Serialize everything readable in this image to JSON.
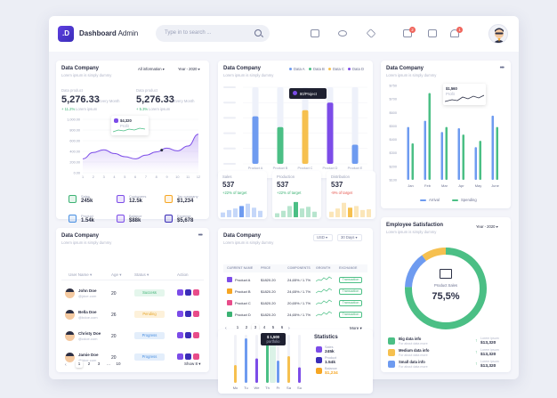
{
  "header": {
    "logo": ".D",
    "brand_bold": "Dashboard",
    "brand_light": "Admin",
    "search_placeholder": "Type in to search ...",
    "mail_badge": "2",
    "bell_badge": "1"
  },
  "card1": {
    "title": "Data Company",
    "subtitle": "Lorem ipsum is simply dummy",
    "filter": "All information",
    "year": "Year - 2020",
    "stat1": {
      "label": "Data product",
      "value": "5,276.33",
      "sub": "Every Month",
      "change": "+ 11.2%",
      "change_label": "Lorem ipsum"
    },
    "stat2": {
      "label": "Data product",
      "value": "5,276.33",
      "sub": "Every Month",
      "change": "+ 5.3%",
      "change_label": "Lorem ipsum"
    },
    "tooltip": {
      "value": "$4,320",
      "label": "Profit"
    },
    "yticks": [
      "1,000.00",
      "800.00",
      "600.00",
      "400.00",
      "200.00",
      "0.00"
    ],
    "xticks": [
      "1",
      "2",
      "3",
      "4",
      "5",
      "6",
      "7",
      "8",
      "9",
      "10",
      "11",
      "12"
    ],
    "chart_data": {
      "type": "area",
      "x": [
        1,
        2,
        3,
        4,
        5,
        6,
        7,
        8,
        9,
        10,
        11,
        12
      ],
      "values": [
        260,
        380,
        430,
        360,
        300,
        260,
        330,
        390,
        460,
        410,
        500,
        720
      ],
      "ylim": [
        0,
        1000
      ]
    },
    "kpis": [
      {
        "label": "Sales",
        "value": "245k"
      },
      {
        "label": "Customers",
        "value": "12.5k"
      },
      {
        "label": "Tax company",
        "value": "$1,234"
      },
      {
        "label": "Product",
        "value": "1.54k"
      },
      {
        "label": "Balance",
        "value": "$88k"
      },
      {
        "label": "Expense",
        "value": "$5,678"
      }
    ]
  },
  "card2": {
    "title": "Data Company",
    "subtitle": "Lorem ipsum is simply dummy",
    "legend": [
      "Data A",
      "Data B",
      "Data C",
      "Data D"
    ],
    "tooltip": "80/Project",
    "chart_data": {
      "type": "bar",
      "categories": [
        "Product A",
        "Product B",
        "Product C",
        "Product D",
        "Product E"
      ],
      "series": [
        {
          "name": "Data A",
          "values": [
            62,
            50,
            45,
            60,
            25
          ]
        },
        {
          "name": "Data B",
          "values": [
            58,
            48,
            40,
            52,
            20
          ]
        },
        {
          "name": "Data C",
          "values": [
            50,
            60,
            70,
            60,
            18
          ]
        },
        {
          "name": "Data D",
          "values": [
            48,
            55,
            62,
            80,
            15
          ]
        }
      ],
      "ylim": [
        0,
        100
      ]
    },
    "colors": [
      "#6e9bf0",
      "#4bbf85",
      "#f6c04f",
      "#7c4ce8"
    ]
  },
  "mini": [
    {
      "title": "Sales",
      "value": "537",
      "change": "+22% of target",
      "color": "#6e9bf0",
      "values": [
        30,
        45,
        55,
        70,
        85,
        60,
        40
      ],
      "positive": true
    },
    {
      "title": "Production",
      "value": "537",
      "change": "+22% of target",
      "color": "#4bbf85",
      "values": [
        25,
        40,
        70,
        95,
        55,
        65,
        35
      ],
      "positive": true
    },
    {
      "title": "Distribution",
      "value": "537",
      "change": "-9% of target",
      "color": "#f6c04f",
      "values": [
        35,
        55,
        90,
        60,
        70,
        45,
        50
      ],
      "positive": false
    }
  ],
  "card3": {
    "title": "Data Company",
    "subtitle": "Lorem ipsum is simply dummy",
    "tooltip_value": "$1,560",
    "tooltip_label": "Profit",
    "yticks": [
      "$750",
      "$700",
      "$600",
      "$500",
      "$400",
      "$300",
      "$200",
      "$100"
    ],
    "chart_data": {
      "type": "bar",
      "categories": [
        "Jan",
        "Feb",
        "Mar",
        "Apr",
        "May",
        "June"
      ],
      "series": [
        {
          "name": "Arrival",
          "values": [
            420,
            470,
            380,
            410,
            260,
            510
          ]
        },
        {
          "name": "Spending",
          "values": [
            290,
            690,
            420,
            360,
            310,
            420
          ]
        }
      ]
    },
    "legend": [
      "Arrival",
      "Spending"
    ]
  },
  "users": {
    "title": "Data Company",
    "subtitle": "Lorem ipsum is simply dummy",
    "headers": [
      "User Name",
      "Age",
      "Status",
      "Action"
    ],
    "rows": [
      {
        "name": "John Doe",
        "email": "@jdoe.com",
        "age": "20",
        "status": "Success",
        "status_color": "#3bb273",
        "status_bg": "#e4f6ec"
      },
      {
        "name": "Bella Doe",
        "email": "@bdoe.com",
        "age": "26",
        "status": "Pending",
        "status_color": "#e6a325",
        "status_bg": "#fdf1da"
      },
      {
        "name": "Christy Doe",
        "email": "@cdoe.com",
        "age": "20",
        "status": "Progress",
        "status_color": "#4a90e2",
        "status_bg": "#e3eefb"
      },
      {
        "name": "Jamie Doe",
        "email": "@jdoe.com",
        "age": "20",
        "status": "Progress",
        "status_color": "#4a90e2",
        "status_bg": "#e3eefb"
      }
    ],
    "pages": [
      "1",
      "2",
      "3",
      "...",
      "10"
    ],
    "show": "Show 8"
  },
  "products": {
    "title": "Data Company",
    "subtitle": "Lorem ipsum is simply dummy",
    "currency": "USD",
    "period": "30 Days",
    "headers": [
      "CURRENT NAME",
      "PRICE",
      "COMPONENTS",
      "GROWTH",
      "EXCHANGE"
    ],
    "rows": [
      {
        "name": "Product A",
        "price": "$1820.20",
        "comp": "24,65% / 1.7%",
        "action": "Transaction"
      },
      {
        "name": "Product B",
        "price": "$1820.20",
        "comp": "24,65% / 1.7%",
        "action": "Transaction"
      },
      {
        "name": "Product C",
        "price": "$1820.20",
        "comp": "20,65% / 1.7%",
        "action": "Transaction"
      },
      {
        "name": "Product D",
        "price": "$1820.20",
        "comp": "24,65% / 1.7%",
        "action": "Transaction"
      }
    ],
    "pages": [
      "1",
      "2",
      "3",
      "4",
      "5",
      "6"
    ],
    "more": "More"
  },
  "stats": {
    "title": "Statistics",
    "tooltip_value": "$ 1,500",
    "tooltip_label": "portfolio",
    "days": [
      "Mo",
      "Tu",
      "We",
      "Th",
      "Fr",
      "Sa",
      "Su"
    ],
    "chart_data": {
      "type": "bar",
      "categories": [
        "Mo",
        "Tu",
        "We",
        "Th",
        "Fr",
        "Sa",
        "Su"
      ],
      "values": [
        40,
        100,
        55,
        90,
        50,
        60,
        35
      ]
    },
    "items": [
      {
        "label": "Sales",
        "value": "245k"
      },
      {
        "label": "Product",
        "value": "1.54k"
      },
      {
        "label": "Balance",
        "value": "$1,234"
      }
    ]
  },
  "employee": {
    "title": "Employee Satisfaction",
    "subtitle": "Lorem ipsum is simply dummy",
    "year": "Year - 2020",
    "center_label": "Product Sales",
    "center_value": "75,5%",
    "chart_data": {
      "type": "pie",
      "values": [
        75.5,
        14.5,
        10
      ],
      "colors": [
        "#4bbf85",
        "#6e9bf0",
        "#f6c04f"
      ]
    },
    "items": [
      {
        "label": "Big data info",
        "sub": "For about data more",
        "value": "$13,320",
        "right_label": "Lorem ipsum",
        "color": "#4bbf85"
      },
      {
        "label": "Medium data info",
        "sub": "For about data more",
        "value": "$13,320",
        "right_label": "Lorem ipsum",
        "color": "#f6c04f"
      },
      {
        "label": "Small data info",
        "sub": "For about data more",
        "value": "$13,320",
        "right_label": "Lorem ipsum",
        "color": "#6e9bf0"
      }
    ]
  }
}
